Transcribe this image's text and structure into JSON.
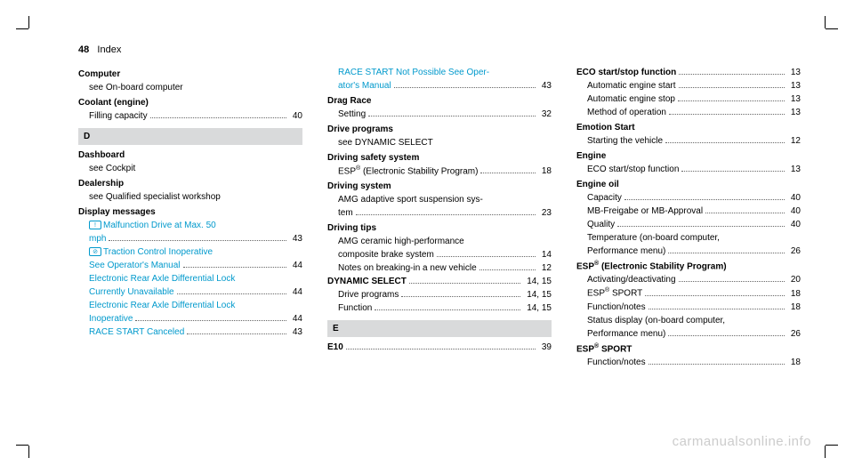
{
  "header": {
    "page_num": "48",
    "section": "Index"
  },
  "watermark": "carmanualsonline.info",
  "col1": {
    "computer": {
      "title": "Computer",
      "sub": "see On-board computer"
    },
    "coolant": {
      "title": "Coolant (engine)",
      "filling": "Filling capacity",
      "filling_pg": "40"
    },
    "letter_d": "D",
    "dashboard": {
      "title": "Dashboard",
      "sub": "see Cockpit"
    },
    "dealership": {
      "title": "Dealership",
      "sub": "see Qualified specialist workshop"
    },
    "display": {
      "title": "Display messages",
      "malfunction1": "Malfunction Drive at Max. 50",
      "malfunction2": "mph",
      "malfunction_pg": "43",
      "traction1": "Traction Control Inoperative",
      "traction2": "See Operator's Manual",
      "traction_pg": "44",
      "rear1": "Electronic Rear Axle Differential Lock",
      "rear2": "Currently Unavailable",
      "rear2_pg": "44",
      "rear3": "Electronic Rear Axle Differential Lock",
      "rear4": "Inoperative",
      "rear4_pg": "44",
      "race": "RACE START Canceled",
      "race_pg": "43"
    }
  },
  "col2": {
    "race_notpossible1": "RACE START Not Possible See Oper-",
    "race_notpossible2": "ator's Manual",
    "race_notpossible_pg": "43",
    "dragrace": {
      "title": "Drag Race",
      "setting": "Setting",
      "setting_pg": "32"
    },
    "driveprograms": {
      "title": "Drive programs",
      "sub": "see DYNAMIC SELECT"
    },
    "safety": {
      "title": "Driving safety system",
      "esp": "ESP® (Electronic Stability Program)",
      "esp_pg": "18"
    },
    "system": {
      "title": "Driving system",
      "amg1": "AMG adaptive sport suspension sys-",
      "amg2": "tem",
      "amg_pg": "23"
    },
    "tips": {
      "title": "Driving tips",
      "ceramic1": "AMG ceramic high-performance",
      "ceramic2": "composite brake system",
      "ceramic_pg": "14",
      "notes": "Notes on breaking-in a new vehicle",
      "notes_pg": "12"
    },
    "dynamic": {
      "title": "DYNAMIC SELECT",
      "title_pg": "14, 15",
      "programs": "Drive programs",
      "programs_pg": "14, 15",
      "function": "Function",
      "function_pg": "14, 15"
    },
    "letter_e": "E",
    "e10": {
      "title": "E10",
      "pg": "39"
    }
  },
  "col3": {
    "eco": {
      "title": "ECO start/stop function",
      "title_pg": "13",
      "start": "Automatic engine start",
      "start_pg": "13",
      "stop": "Automatic engine stop",
      "stop_pg": "13",
      "method": "Method of operation",
      "method_pg": "13"
    },
    "emotion": {
      "title": "Emotion Start",
      "starting": "Starting the vehicle",
      "starting_pg": "12"
    },
    "engine": {
      "title": "Engine",
      "eco": "ECO start/stop function",
      "eco_pg": "13"
    },
    "oil": {
      "title": "Engine oil",
      "capacity": "Capacity",
      "capacity_pg": "40",
      "mb": "MB-Freigabe or MB-Approval",
      "mb_pg": "40",
      "quality": "Quality",
      "quality_pg": "40",
      "temp1": "Temperature (on-board computer,",
      "temp2": "Performance menu)",
      "temp_pg": "26"
    },
    "esp": {
      "title": "ESP® (Electronic Stability Program)",
      "activating": "Activating/deactivating",
      "activating_pg": "20",
      "sport": "ESP® SPORT",
      "sport_pg": "18",
      "notes": "Function/notes",
      "notes_pg": "18",
      "status1": "Status display (on-board computer,",
      "status2": "Performance menu)",
      "status_pg": "26"
    },
    "espsport": {
      "title": "ESP® SPORT",
      "notes": "Function/notes",
      "notes_pg": "18"
    }
  }
}
